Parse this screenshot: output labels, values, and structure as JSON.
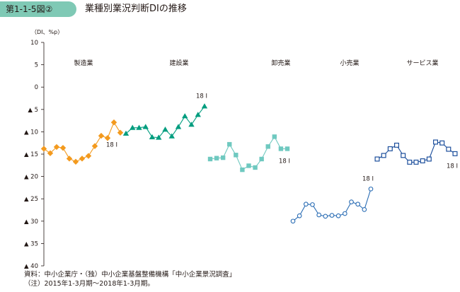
{
  "header": {
    "figure_label": "第1-1-5図②",
    "title": "業種別業況判断DIの推移"
  },
  "footnotes": {
    "source": "資料：中小企業庁・（独）中小企業基盤整備機構「中小企業景況調査」",
    "note": "（注）2015年1-3月期〜2018年1-3月期。"
  },
  "colors": {
    "manufacturing": "#f39a1e",
    "construction": "#009d7f",
    "wholesale": "#6fc9c0",
    "retail": "#2c6eb5",
    "services": "#1d4f9c",
    "axis": "#231815"
  },
  "chart_data": {
    "type": "line",
    "unit": "（DI、%p）",
    "ylim": [
      -40,
      10
    ],
    "yticks": [
      {
        "value": 10,
        "label": "10"
      },
      {
        "value": 5,
        "label": "5"
      },
      {
        "value": 0,
        "label": "0"
      },
      {
        "value": -5,
        "label": "▲ 5"
      },
      {
        "value": -10,
        "label": "▲ 10"
      },
      {
        "value": -15,
        "label": "▲ 15"
      },
      {
        "value": -20,
        "label": "▲ 20"
      },
      {
        "value": -25,
        "label": "▲ 25"
      },
      {
        "value": -30,
        "label": "▲ 30"
      },
      {
        "value": -35,
        "label": "▲ 35"
      },
      {
        "value": -40,
        "label": "▲ 40"
      }
    ],
    "grid": false,
    "series": [
      {
        "name": "製造業",
        "color_key": "manufacturing",
        "marker": "diamond",
        "end_label": "18 Ⅰ",
        "values": [
          -13.8,
          -14.8,
          -13.4,
          -13.6,
          -16.0,
          -16.7,
          -16.0,
          -15.4,
          -13.2,
          -10.9,
          -11.4,
          -7.9,
          -10.2
        ]
      },
      {
        "name": "建設業",
        "color_key": "construction",
        "marker": "triangle",
        "end_label": "18 Ⅰ",
        "values": [
          -10.4,
          -9.1,
          -9.1,
          -8.9,
          -11.2,
          -11.3,
          -9.5,
          -11.0,
          -8.9,
          -6.5,
          -8.4,
          -6.2,
          -4.3
        ]
      },
      {
        "name": "卸売業",
        "color_key": "wholesale",
        "marker": "square",
        "end_label": "18 Ⅰ",
        "values": [
          -16.1,
          -15.9,
          -15.8,
          -12.8,
          -15.2,
          -18.5,
          -17.6,
          -18.0,
          -16.1,
          -13.3,
          -11.1,
          -13.8,
          -13.8
        ]
      },
      {
        "name": "小売業",
        "color_key": "retail",
        "marker": "circle",
        "end_label": "18 Ⅰ",
        "values": [
          -30.0,
          -28.8,
          -26.2,
          -26.3,
          -28.6,
          -28.9,
          -28.7,
          -28.8,
          -28.3,
          -25.7,
          -26.2,
          -27.4,
          -22.8
        ]
      },
      {
        "name": "サービス業",
        "color_key": "services",
        "marker": "square-open",
        "end_label": "18 Ⅰ",
        "values": [
          -16.1,
          -15.3,
          -13.8,
          -13.0,
          -15.3,
          -16.8,
          -16.8,
          -16.5,
          -16.1,
          -12.3,
          -12.5,
          -13.9,
          -14.9
        ]
      }
    ]
  }
}
